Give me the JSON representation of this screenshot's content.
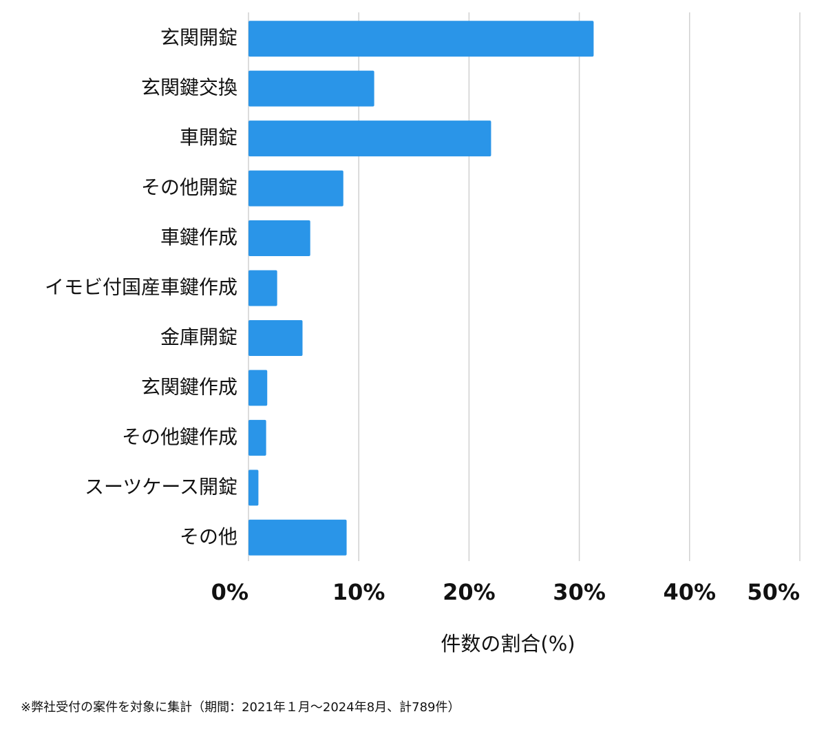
{
  "chart_data": {
    "type": "bar",
    "orientation": "horizontal",
    "categories": [
      "玄関開錠",
      "玄関鍵交換",
      "車開錠",
      "その他開錠",
      "車鍵作成",
      "イモビ付国産車鍵作成",
      "金庫開錠",
      "玄関鍵作成",
      "その他鍵作成",
      "スーツケース開錠",
      "その他"
    ],
    "values": [
      31.3,
      11.4,
      22.0,
      8.6,
      5.6,
      2.6,
      4.9,
      1.7,
      1.6,
      0.9,
      8.9
    ],
    "color": "#2a95e8",
    "xlim": [
      0,
      50
    ],
    "xticks": [
      {
        "value": 0,
        "label": "0%"
      },
      {
        "value": 10,
        "label": "10%"
      },
      {
        "value": 20,
        "label": "20%"
      },
      {
        "value": 30,
        "label": "30%"
      },
      {
        "value": 40,
        "label": "40%"
      },
      {
        "value": 50,
        "label": "50%"
      }
    ],
    "x_label": "件数の割合(%)",
    "grid": true
  },
  "footnote": "※弊社受付の案件を対象に集計（期間：2021年１月～2024年8月、計789件）"
}
